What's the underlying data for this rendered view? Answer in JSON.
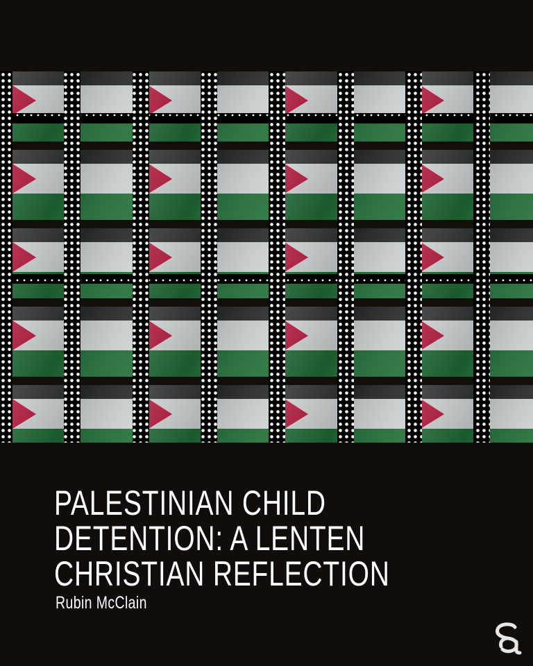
{
  "artwork": {
    "description_icon": "palestinian-flags-behind-bars",
    "colors": {
      "black": "#1a1a1a",
      "white": "#d8dcdc",
      "green": "#1f6b35",
      "red": "#b0163a",
      "bar": "#000000",
      "dot": "#ffffff"
    }
  },
  "title": {
    "lines": [
      "Palestinian Child",
      "Detention: A Lenten",
      "Christian Reflection"
    ]
  },
  "author": "Rubin McClain",
  "logo": {
    "icon": "sa-logo-icon",
    "color": "#e6e6e6"
  }
}
